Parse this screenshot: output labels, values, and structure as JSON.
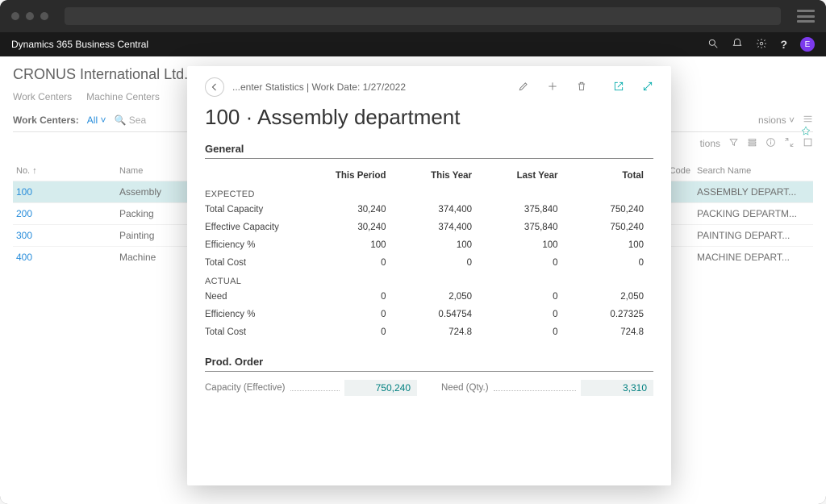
{
  "header": {
    "product": "Dynamics 365 Business Central",
    "avatar_initial": "E"
  },
  "background": {
    "company": "CRONUS International Ltd.",
    "tabs": [
      "Work Centers",
      "Machine Centers"
    ],
    "filter_label": "Work Centers:",
    "filter_value": "All",
    "search_placeholder": "Sea",
    "right_label_1": "nsions",
    "right_label_2": "tions",
    "columns": {
      "no": "No. ↑",
      "name": "Name",
      "cal": "ndar Code",
      "search": "Search Name"
    },
    "rows": [
      {
        "no": "100",
        "name": "Assembly",
        "search": "ASSEMBLY DEPART..."
      },
      {
        "no": "200",
        "name": "Packing",
        "search": "PACKING DEPARTM..."
      },
      {
        "no": "300",
        "name": "Painting",
        "search": "PAINTING DEPART..."
      },
      {
        "no": "400",
        "name": "Machine",
        "search": "MACHINE DEPART..."
      }
    ]
  },
  "modal": {
    "breadcrumb": "...enter Statistics | Work Date: 1/27/2022",
    "title": "100 · Assembly department",
    "section_general": "General",
    "col": {
      "c1": "This Period",
      "c2": "This Year",
      "c3": "Last Year",
      "c4": "Total"
    },
    "group_expected": "EXPECTED",
    "group_actual": "ACTUAL",
    "rows_expected": [
      {
        "label": "Total Capacity",
        "v": [
          "30,240",
          "374,400",
          "375,840",
          "750,240"
        ]
      },
      {
        "label": "Effective Capacity",
        "v": [
          "30,240",
          "374,400",
          "375,840",
          "750,240"
        ]
      },
      {
        "label": "Efficiency %",
        "v": [
          "100",
          "100",
          "100",
          "100"
        ]
      },
      {
        "label": "Total Cost",
        "v": [
          "0",
          "0",
          "0",
          "0"
        ]
      }
    ],
    "rows_actual": [
      {
        "label": "Need",
        "v": [
          "0",
          "2,050",
          "0",
          "2,050"
        ]
      },
      {
        "label": "Efficiency %",
        "v": [
          "0",
          "0.54754",
          "0",
          "0.27325"
        ]
      },
      {
        "label": "Total Cost",
        "v": [
          "0",
          "724.8",
          "0",
          "724.8"
        ]
      }
    ],
    "section_prod": "Prod. Order",
    "prod_order": {
      "cap_label": "Capacity (Effective)",
      "cap_value": "750,240",
      "need_label": "Need (Qty.)",
      "need_value": "3,310"
    }
  },
  "colors": {
    "accent_teal": "#008e9b",
    "link_blue": "#0078d4",
    "avatar_bg": "#7c3aed"
  }
}
